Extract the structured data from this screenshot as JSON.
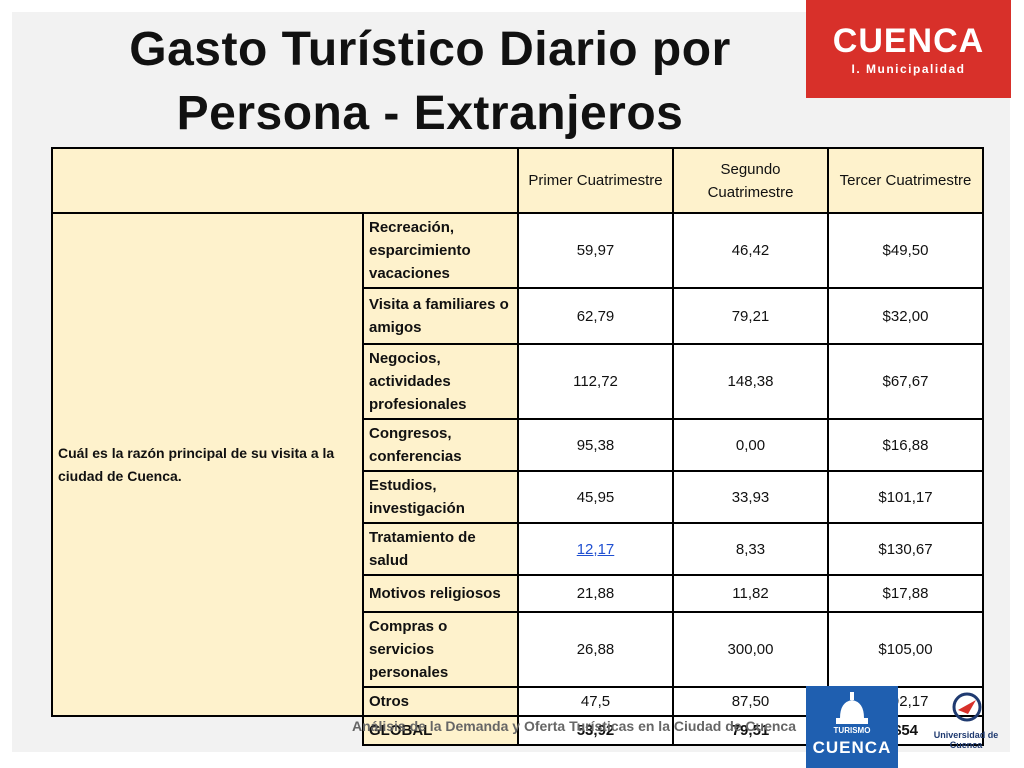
{
  "slide": {
    "title": "Gasto Turístico Diario por Persona - Extranjeros",
    "logo": {
      "word": "CUENCA",
      "sub": "I. Municipalidad"
    },
    "footer": {
      "text": "Análisis de la Demanda y Oferta Turísticas en la Ciudad de Cuenca",
      "turismo_small": "TURISMO",
      "turismo_big": "CUENCA",
      "university": "Universidad de Cuenca"
    }
  },
  "table": {
    "headers": [
      "Primer Cuatrimestre",
      "Segundo Cuatrimestre",
      "Tercer Cuatrimestre"
    ],
    "question": "Cuál es la razón principal de su visita a la ciudad de Cuenca.",
    "rows": [
      {
        "label": "Recreación, esparcimiento vacaciones",
        "values": [
          "59,97",
          "46,42",
          "$49,50"
        ]
      },
      {
        "label": "Visita a familiares o amigos",
        "values": [
          "62,79",
          "79,21",
          "$32,00"
        ]
      },
      {
        "label": "Negocios, actividades profesionales",
        "values": [
          "112,72",
          "148,38",
          "$67,67"
        ]
      },
      {
        "label": "Congresos, conferencias",
        "values": [
          "95,38",
          "0,00",
          "$16,88"
        ]
      },
      {
        "label": "Estudios, investigación",
        "values": [
          "45,95",
          "33,93",
          "$101,17"
        ]
      },
      {
        "label": "Tratamiento de salud",
        "values": [
          "12,17",
          "8,33",
          "$130,67"
        ]
      },
      {
        "label": "Motivos religiosos",
        "values": [
          "21,88",
          "11,82",
          "$17,88"
        ]
      },
      {
        "label": "Compras o servicios personales",
        "values": [
          "26,88",
          "300,00",
          "$105,00"
        ]
      },
      {
        "label": "Otros",
        "values": [
          "47,5",
          "87,50",
          "$92,17"
        ]
      }
    ],
    "global": {
      "label": "GLOBAL",
      "values": [
        "53,92",
        "79,51",
        "$54"
      ]
    }
  }
}
